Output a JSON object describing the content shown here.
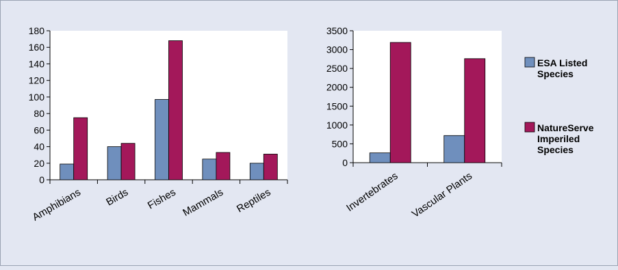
{
  "colors": {
    "background": "#e3e7f2",
    "plot_area": "#ffffff",
    "esa": "#6f8fbd",
    "natureserve": "#a3185a",
    "frame": "#9aa2b2"
  },
  "legend": {
    "placement": "right",
    "items": [
      {
        "line1": "ESA Listed",
        "line2": "Species",
        "line3": ""
      },
      {
        "line1": "NatureServe",
        "line2": "Imperiled",
        "line3": "Species"
      }
    ]
  },
  "chart_data": [
    {
      "type": "bar",
      "categories": [
        "Amphibians",
        "Birds",
        "Fishes",
        "Mammals",
        "Reptiles"
      ],
      "series": [
        {
          "name": "ESA Listed Species",
          "values": [
            19,
            40,
            97,
            25,
            20
          ]
        },
        {
          "name": "NatureServe Imperiled Species",
          "values": [
            75,
            44,
            168,
            33,
            31
          ]
        }
      ],
      "ylim": [
        0,
        180
      ],
      "yticks": [
        0,
        20,
        40,
        60,
        80,
        100,
        120,
        140,
        160,
        180
      ],
      "xlabel": "",
      "ylabel": "",
      "title": "",
      "grid": false
    },
    {
      "type": "bar",
      "categories": [
        "Invertebrates",
        "Vascular Plants"
      ],
      "series": [
        {
          "name": "ESA Listed Species",
          "values": [
            260,
            720
          ]
        },
        {
          "name": "NatureServe Imperiled Species",
          "values": [
            3190,
            2760
          ]
        }
      ],
      "ylim": [
        0,
        3500
      ],
      "yticks": [
        0,
        500,
        1000,
        1500,
        2000,
        2500,
        3000,
        3500
      ],
      "xlabel": "",
      "ylabel": "",
      "title": "",
      "grid": false
    }
  ]
}
